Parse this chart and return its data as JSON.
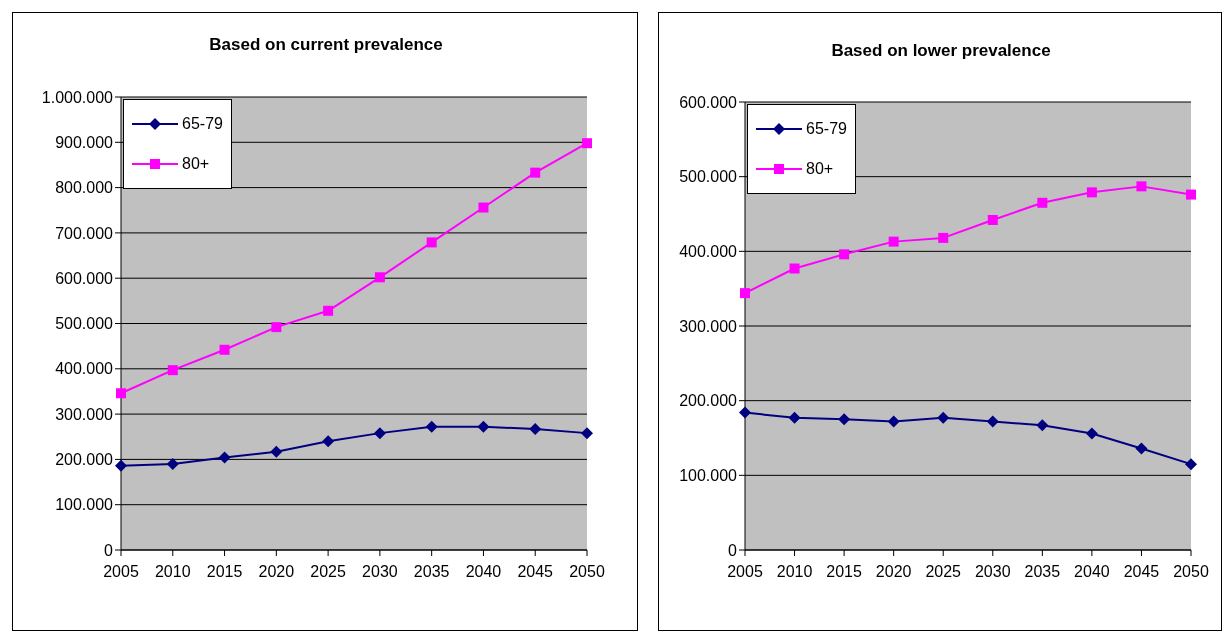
{
  "chart_data": [
    {
      "type": "line",
      "title": "Based on current prevalence",
      "categories": [
        "2005",
        "2010",
        "2015",
        "2020",
        "2025",
        "2030",
        "2035",
        "2040",
        "2045",
        "2050"
      ],
      "series": [
        {
          "name": "65-79",
          "color": "#000080",
          "marker": "diamond",
          "values": [
            186000,
            190000,
            204000,
            217000,
            240000,
            258000,
            272000,
            272000,
            267000,
            258000
          ]
        },
        {
          "name": "80+",
          "color": "#ff00ff",
          "marker": "square",
          "values": [
            346000,
            397000,
            442000,
            492000,
            528000,
            602000,
            679000,
            756000,
            833000,
            898000
          ]
        }
      ],
      "ylim": [
        0,
        1000000
      ],
      "yticks": [
        0,
        {
          "value": 100000,
          "label": "100.000"
        },
        {
          "value": 200000,
          "label": "200.000"
        },
        {
          "value": 300000,
          "label": "300.000"
        },
        {
          "value": 400000,
          "label": "400.000"
        },
        {
          "value": 500000,
          "label": "500.000"
        },
        {
          "value": 600000,
          "label": "600.000"
        },
        {
          "value": 700000,
          "label": "700.000"
        },
        {
          "value": 800000,
          "label": "800.000"
        },
        {
          "value": 900000,
          "label": "900.000"
        },
        {
          "value": 1000000,
          "label": "1.000.000"
        }
      ],
      "grid": "y",
      "legend": "top left"
    },
    {
      "type": "line",
      "title": "Based on lower prevalence",
      "categories": [
        "2005",
        "2010",
        "2015",
        "2020",
        "2025",
        "2030",
        "2035",
        "2040",
        "2045",
        "2050"
      ],
      "series": [
        {
          "name": "65-79",
          "color": "#000080",
          "marker": "diamond",
          "values": [
            184000,
            177000,
            175000,
            172000,
            177000,
            172000,
            167000,
            156000,
            136000,
            115000
          ]
        },
        {
          "name": "80+",
          "color": "#ff00ff",
          "marker": "square",
          "values": [
            344000,
            377000,
            396000,
            413000,
            418000,
            442000,
            465000,
            479000,
            487000,
            476000
          ]
        }
      ],
      "ylim": [
        0,
        600000
      ],
      "yticks": [
        0,
        {
          "value": 100000,
          "label": "100.000"
        },
        {
          "value": 200000,
          "label": "200.000"
        },
        {
          "value": 300000,
          "label": "300.000"
        },
        {
          "value": 400000,
          "label": "400.000"
        },
        {
          "value": 500000,
          "label": "500.000"
        },
        {
          "value": 600000,
          "label": "600.000"
        }
      ],
      "grid": "y",
      "legend": "top left"
    }
  ]
}
